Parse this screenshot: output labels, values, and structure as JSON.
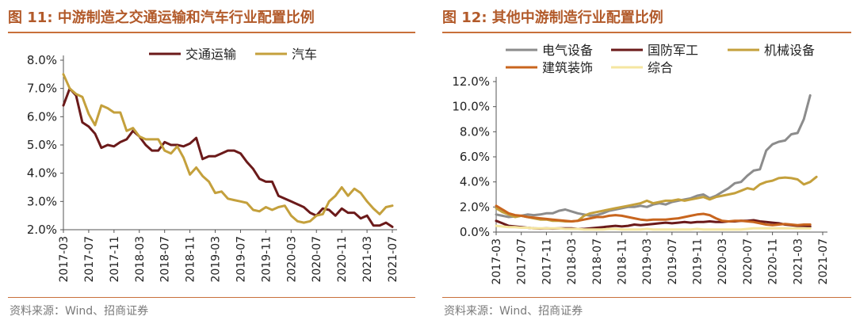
{
  "panels": [
    {
      "figure_title": "图 11:  中游制造之交通运输和汽车行业配置比例",
      "source": "资料来源：Wind、招商证券"
    },
    {
      "figure_title": "图 12:  其他中游制造行业配置比例",
      "source": "资料来源：Wind、招商证券"
    }
  ],
  "chart_data": [
    {
      "type": "line",
      "title": "",
      "xlabel": "",
      "ylabel": "",
      "x_ticks": [
        "2017-03",
        "2017-07",
        "2017-11",
        "2018-03",
        "2018-07",
        "2018-11",
        "2019-03",
        "2019-07",
        "2019-11",
        "2020-03",
        "2020-07",
        "2020-11",
        "2021-03",
        "2021-07"
      ],
      "y_ticks": [
        "2.0%",
        "3.0%",
        "4.0%",
        "5.0%",
        "6.0%",
        "7.0%",
        "8.0%"
      ],
      "ylim": [
        2.0,
        8.0
      ],
      "legend_position": "top",
      "grid": false,
      "x_start": "2017-03",
      "series": [
        {
          "name": "交通运输",
          "color": "#6b1a1a",
          "values": [
            6.4,
            7.0,
            6.75,
            5.8,
            5.65,
            5.4,
            4.9,
            5.0,
            4.95,
            5.1,
            5.2,
            5.5,
            5.3,
            5.0,
            4.8,
            4.8,
            5.1,
            5.0,
            5.0,
            4.95,
            5.05,
            5.25,
            4.5,
            4.6,
            4.6,
            4.7,
            4.8,
            4.8,
            4.7,
            4.4,
            4.15,
            3.8,
            3.7,
            3.7,
            3.2,
            3.1,
            3.0,
            2.9,
            2.8,
            2.6,
            2.5,
            2.75,
            2.7,
            2.5,
            2.75,
            2.6,
            2.6,
            2.4,
            2.5,
            2.15,
            2.15,
            2.25,
            2.1
          ]
        },
        {
          "name": "汽车",
          "color": "#c4a03c",
          "values": [
            7.5,
            7.0,
            6.8,
            6.7,
            6.1,
            5.7,
            6.4,
            6.3,
            6.15,
            6.15,
            5.5,
            5.6,
            5.3,
            5.2,
            5.2,
            5.2,
            4.8,
            4.7,
            4.95,
            4.55,
            3.95,
            4.2,
            3.9,
            3.7,
            3.3,
            3.35,
            3.1,
            3.05,
            3.0,
            2.95,
            2.7,
            2.65,
            2.8,
            2.7,
            2.8,
            2.85,
            2.5,
            2.3,
            2.25,
            2.3,
            2.5,
            2.55,
            3.0,
            3.2,
            3.5,
            3.2,
            3.45,
            3.3,
            3.0,
            2.75,
            2.55,
            2.8,
            2.85
          ]
        }
      ]
    },
    {
      "type": "line",
      "title": "",
      "xlabel": "",
      "ylabel": "",
      "x_ticks": [
        "2017-03",
        "2017-07",
        "2017-11",
        "2018-03",
        "2018-07",
        "2018-11",
        "2019-03",
        "2019-07",
        "2019-11",
        "2020-03",
        "2020-07",
        "2020-11",
        "2021-03",
        "2021-07"
      ],
      "y_ticks": [
        "0.0%",
        "2.0%",
        "4.0%",
        "6.0%",
        "8.0%",
        "10.0%",
        "12.0%"
      ],
      "ylim": [
        0.0,
        12.0
      ],
      "legend_position": "top",
      "grid": false,
      "x_start": "2017-03",
      "series": [
        {
          "name": "电气设备",
          "color": "#8c8c8c",
          "values": [
            1.4,
            1.3,
            1.2,
            1.25,
            1.3,
            1.4,
            1.35,
            1.4,
            1.5,
            1.5,
            1.7,
            1.8,
            1.65,
            1.5,
            1.4,
            1.3,
            1.35,
            1.5,
            1.7,
            1.8,
            1.9,
            2.0,
            2.0,
            2.1,
            2.0,
            2.2,
            2.3,
            2.2,
            2.4,
            2.5,
            2.6,
            2.7,
            2.9,
            3.0,
            2.7,
            2.9,
            3.2,
            3.5,
            3.9,
            4.0,
            4.5,
            4.9,
            5.0,
            6.5,
            7.0,
            7.2,
            7.3,
            7.8,
            7.9,
            9.0,
            10.9
          ]
        },
        {
          "name": "国防军工",
          "color": "#6b1a1a",
          "values": [
            0.9,
            0.7,
            0.5,
            0.45,
            0.4,
            0.35,
            0.3,
            0.28,
            0.3,
            0.28,
            0.3,
            0.3,
            0.3,
            0.25,
            0.25,
            0.3,
            0.35,
            0.4,
            0.45,
            0.5,
            0.45,
            0.5,
            0.6,
            0.55,
            0.6,
            0.65,
            0.7,
            0.75,
            0.7,
            0.75,
            0.8,
            0.75,
            0.8,
            0.8,
            0.85,
            0.8,
            0.8,
            0.85,
            0.85,
            0.9,
            0.9,
            0.95,
            0.85,
            0.8,
            0.75,
            0.7,
            0.6,
            0.55,
            0.5,
            0.5,
            0.45
          ]
        },
        {
          "name": "机械设备",
          "color": "#c4a03c",
          "values": [
            1.9,
            1.6,
            1.4,
            1.2,
            1.3,
            1.2,
            1.1,
            1.0,
            1.0,
            0.9,
            0.9,
            0.85,
            0.85,
            0.9,
            1.3,
            1.5,
            1.6,
            1.7,
            1.8,
            1.9,
            2.0,
            2.1,
            2.2,
            2.3,
            2.5,
            2.3,
            2.4,
            2.5,
            2.5,
            2.6,
            2.5,
            2.6,
            2.7,
            2.8,
            2.6,
            2.8,
            2.9,
            3.0,
            3.1,
            3.3,
            3.5,
            3.4,
            3.8,
            4.0,
            4.1,
            4.3,
            4.35,
            4.3,
            4.2,
            3.8,
            4.0,
            4.4
          ]
        },
        {
          "name": "建筑装饰",
          "color": "#c8651e",
          "values": [
            2.1,
            1.8,
            1.5,
            1.35,
            1.3,
            1.2,
            1.15,
            1.1,
            1.05,
            1.0,
            0.95,
            0.9,
            0.85,
            0.9,
            1.0,
            1.1,
            1.2,
            1.2,
            1.3,
            1.35,
            1.3,
            1.2,
            1.1,
            1.0,
            0.95,
            1.0,
            1.0,
            1.0,
            1.05,
            1.1,
            1.2,
            1.3,
            1.4,
            1.45,
            1.35,
            1.1,
            0.9,
            0.85,
            0.9,
            0.9,
            0.85,
            0.8,
            0.7,
            0.6,
            0.55,
            0.6,
            0.65,
            0.6,
            0.55,
            0.6,
            0.6
          ]
        },
        {
          "name": "综合",
          "color": "#f5e6a0",
          "values": [
            0.5,
            0.45,
            0.4,
            0.4,
            0.35,
            0.35,
            0.3,
            0.3,
            0.3,
            0.3,
            0.3,
            0.25,
            0.25,
            0.25,
            0.2,
            0.2,
            0.2,
            0.2,
            0.25,
            0.25,
            0.2,
            0.2,
            0.2,
            0.2,
            0.25,
            0.2,
            0.2,
            0.2,
            0.2,
            0.2,
            0.2,
            0.2,
            0.25,
            0.2,
            0.2,
            0.2,
            0.2,
            0.2,
            0.2,
            0.2,
            0.25,
            0.3,
            0.3,
            0.3,
            0.3,
            0.3,
            0.3,
            0.3,
            0.3,
            0.3,
            0.3
          ]
        }
      ]
    }
  ]
}
